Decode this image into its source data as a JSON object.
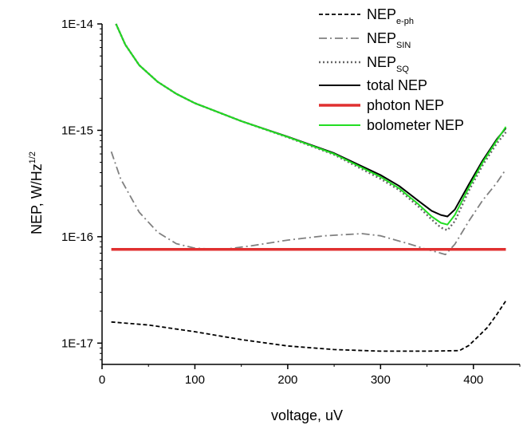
{
  "chart_data": {
    "type": "line",
    "xlabel": "voltage, uV",
    "ylabel": {
      "main": "NEP, W/Hz",
      "sup": "1/2"
    },
    "xlim": [
      0,
      450
    ],
    "ylim_log10": [
      -17.2,
      -14.0
    ],
    "y_scale": "log",
    "grid": false,
    "legend_position": "top-right",
    "x_ticks": [
      {
        "value": 0,
        "label": "0"
      },
      {
        "value": 100,
        "label": "100"
      },
      {
        "value": 200,
        "label": "200"
      },
      {
        "value": 300,
        "label": "300"
      },
      {
        "value": 400,
        "label": "400"
      }
    ],
    "y_ticks": [
      {
        "value": 1e-17,
        "label": "1E-17"
      },
      {
        "value": 1e-16,
        "label": "1E-16"
      },
      {
        "value": 1e-15,
        "label": "1E-15"
      },
      {
        "value": 1e-14,
        "label": "1E-14"
      }
    ],
    "series": [
      {
        "name": "NEP",
        "name_sub": "e-ph",
        "color": "#000000",
        "dash": "5,3",
        "width": 1.8,
        "x": [
          10,
          50,
          100,
          150,
          200,
          250,
          300,
          350,
          385,
          395,
          405,
          415,
          425,
          435
        ],
        "y": [
          1.58e-17,
          1.48e-17,
          1.28e-17,
          1.08e-17,
          9.4e-18,
          8.7e-18,
          8.4e-18,
          8.4e-18,
          8.5e-18,
          9.5e-18,
          1.15e-17,
          1.4e-17,
          1.85e-17,
          2.5e-17
        ]
      },
      {
        "name": "NEP",
        "name_sub": "SIN",
        "color": "#808080",
        "dash": "10,4,2,4",
        "width": 1.8,
        "x": [
          10,
          20,
          40,
          60,
          80,
          100,
          130,
          160,
          200,
          240,
          280,
          300,
          330,
          350,
          370,
          380,
          395,
          410,
          425,
          435
        ],
        "y": [
          6.3e-16,
          3.5e-16,
          1.7e-16,
          1.1e-16,
          8.6e-17,
          7.8e-17,
          7.6e-17,
          8.2e-17,
          9.3e-17,
          1.02e-16,
          1.07e-16,
          1.02e-16,
          8.6e-17,
          7.6e-17,
          6.8e-17,
          8.5e-17,
          1.4e-16,
          2.2e-16,
          3.2e-16,
          4.3e-16
        ]
      },
      {
        "name": "NEP",
        "name_sub": "SQ",
        "color": "#666666",
        "dash": "2,3",
        "width": 2.4,
        "x": [
          15,
          25,
          40,
          60,
          80,
          100,
          150,
          200,
          250,
          300,
          320,
          340,
          355,
          365,
          372,
          380,
          395,
          410,
          425,
          435
        ],
        "y": [
          1e-14,
          6.4e-15,
          4.1e-15,
          2.85e-15,
          2.2e-15,
          1.8e-15,
          1.22e-15,
          8.6e-16,
          5.9e-16,
          3.5e-16,
          2.75e-16,
          1.95e-16,
          1.45e-16,
          1.22e-16,
          1.15e-16,
          1.4e-16,
          2.7e-16,
          4.7e-16,
          7.5e-16,
          9.6e-16
        ]
      },
      {
        "name": "total NEP",
        "color": "#000000",
        "dash": "",
        "width": 2,
        "x": [
          15,
          25,
          40,
          60,
          80,
          100,
          150,
          200,
          250,
          300,
          320,
          340,
          355,
          365,
          372,
          380,
          395,
          410,
          425,
          435
        ],
        "y": [
          1e-14,
          6.4e-15,
          4.1e-15,
          2.85e-15,
          2.2e-15,
          1.8e-15,
          1.22e-15,
          8.7e-16,
          6.1e-16,
          3.8e-16,
          3e-16,
          2.2e-16,
          1.75e-16,
          1.6e-16,
          1.55e-16,
          1.8e-16,
          3.1e-16,
          5.2e-16,
          8.2e-16,
          1.05e-15
        ]
      },
      {
        "name": "photon NEP",
        "color": "#e03030",
        "dash": "",
        "width": 3.5,
        "x": [
          10,
          435
        ],
        "y": [
          7.6e-17,
          7.6e-17
        ]
      },
      {
        "name": "bolometer NEP",
        "color": "#22dd22",
        "dash": "",
        "width": 2,
        "x": [
          15,
          25,
          40,
          60,
          80,
          100,
          150,
          200,
          250,
          300,
          320,
          340,
          355,
          365,
          372,
          380,
          395,
          410,
          425,
          435
        ],
        "y": [
          1e-14,
          6.4e-15,
          4.1e-15,
          2.85e-15,
          2.2e-15,
          1.8e-15,
          1.22e-15,
          8.65e-16,
          6e-16,
          3.65e-16,
          2.85e-16,
          2.05e-16,
          1.55e-16,
          1.35e-16,
          1.3e-16,
          1.6e-16,
          2.9e-16,
          5e-16,
          8e-16,
          1.08e-15
        ]
      }
    ]
  }
}
